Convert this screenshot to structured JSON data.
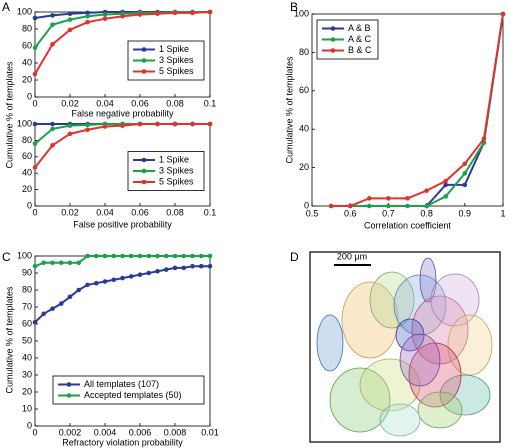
{
  "chart_data": [
    {
      "type": "line",
      "panel": "A",
      "ylabel": "Cumulative % of templates",
      "xlabel": "False negative probability",
      "x": [
        0,
        0.01,
        0.02,
        0.03,
        0.04,
        0.05,
        0.06,
        0.07,
        0.08,
        0.09,
        0.1
      ],
      "xlim": [
        0,
        0.1
      ],
      "xticks": [
        0,
        0.02,
        0.04,
        0.06,
        0.08,
        0.1
      ],
      "ylim": [
        0,
        100
      ],
      "yticks": [
        0,
        20,
        40,
        60,
        80,
        100
      ],
      "legend": "center right",
      "series": [
        {
          "name": "1 Spike",
          "color": "#2b3a96",
          "values": [
            93,
            96,
            98,
            99,
            100,
            100,
            100,
            100,
            100,
            100,
            100
          ]
        },
        {
          "name": "3 Spikes",
          "color": "#1aa14a",
          "values": [
            58,
            85,
            91,
            95,
            97,
            98,
            99,
            99,
            100,
            100,
            100
          ]
        },
        {
          "name": "5 Spikes",
          "color": "#e0332f",
          "values": [
            27,
            62,
            79,
            88,
            92,
            95,
            97,
            98,
            99,
            99,
            100
          ]
        }
      ]
    },
    {
      "type": "line",
      "xlabel": "False positive probability",
      "x": [
        0,
        0.01,
        0.02,
        0.03,
        0.04,
        0.05,
        0.06,
        0.07,
        0.08,
        0.09,
        0.1
      ],
      "xlim": [
        0,
        0.1
      ],
      "xticks": [
        0,
        0.02,
        0.04,
        0.06,
        0.08,
        0.1
      ],
      "ylim": [
        0,
        100
      ],
      "yticks": [
        0,
        20,
        40,
        60,
        80,
        100
      ],
      "legend": "center right",
      "series": [
        {
          "name": "1 Spike",
          "color": "#2b3a96",
          "values": [
            100,
            100,
            100,
            100,
            100,
            100,
            100,
            100,
            100,
            100,
            100
          ]
        },
        {
          "name": "3 Spikes",
          "color": "#1aa14a",
          "values": [
            76,
            94,
            98,
            99,
            100,
            100,
            100,
            100,
            100,
            100,
            100
          ]
        },
        {
          "name": "5 Spikes",
          "color": "#e0332f",
          "values": [
            47,
            74,
            88,
            93,
            97,
            98,
            100,
            100,
            100,
            100,
            100
          ]
        }
      ]
    },
    {
      "type": "line",
      "panel": "B",
      "ylabel": "Cumulative % of templates",
      "xlabel": "Correlation coefficient",
      "x": [
        0.55,
        0.6,
        0.65,
        0.7,
        0.75,
        0.8,
        0.85,
        0.9,
        0.95,
        1
      ],
      "xlim": [
        0.5,
        1
      ],
      "xticks": [
        0.5,
        0.6,
        0.7,
        0.8,
        0.9,
        1
      ],
      "ylim": [
        0,
        100
      ],
      "yticks": [
        0,
        20,
        40,
        60,
        80,
        100
      ],
      "legend": "upper left",
      "series": [
        {
          "name": "A & B",
          "color": "#2b3a96",
          "values": [
            null,
            null,
            null,
            null,
            null,
            0,
            11,
            11,
            33,
            100
          ]
        },
        {
          "name": "A & C",
          "color": "#1aa14a",
          "values": [
            0,
            0,
            0,
            0,
            0,
            0,
            5,
            17,
            33,
            100
          ]
        },
        {
          "name": "B & C",
          "color": "#e0332f",
          "values": [
            0,
            0,
            4,
            4,
            4,
            8,
            13,
            22,
            35,
            100
          ]
        }
      ]
    },
    {
      "type": "line",
      "panel": "C",
      "ylabel": "Cumulative % of templates",
      "xlabel": "Refractory violation probability",
      "x": [
        0,
        0.0005,
        0.001,
        0.0015,
        0.002,
        0.0025,
        0.003,
        0.0035,
        0.004,
        0.0045,
        0.005,
        0.0055,
        0.006,
        0.0065,
        0.007,
        0.0075,
        0.008,
        0.0085,
        0.009,
        0.0095,
        0.01
      ],
      "xlim": [
        0,
        0.01
      ],
      "xticks": [
        0,
        0.002,
        0.004,
        0.006,
        0.008,
        0.01
      ],
      "ylim": [
        0,
        100
      ],
      "yticks": [
        0,
        10,
        20,
        30,
        40,
        50,
        60,
        70,
        80,
        90,
        100
      ],
      "legend": "lower right",
      "series": [
        {
          "name": "All templates (107)",
          "color": "#2b3a96",
          "values": [
            61,
            66,
            69,
            72,
            76,
            80,
            83,
            84,
            85,
            86,
            87,
            88,
            89,
            90,
            91,
            92,
            93,
            93,
            94,
            94,
            94
          ]
        },
        {
          "name": "Accepted templates (50)",
          "color": "#1aa14a",
          "values": [
            94,
            96,
            96,
            96,
            96,
            96,
            100,
            100,
            100,
            100,
            100,
            100,
            100,
            100,
            100,
            100,
            100,
            100,
            100,
            100,
            100
          ]
        }
      ]
    }
  ],
  "image_panel": {
    "panel": "D",
    "scale_bar": "200 μm"
  }
}
